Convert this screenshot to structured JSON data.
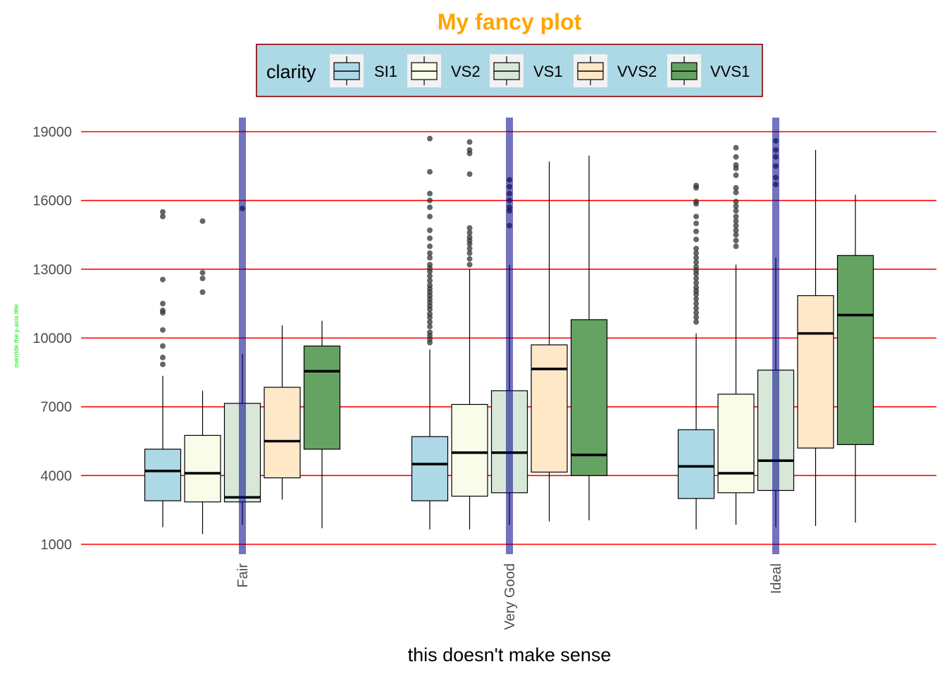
{
  "chart_data": {
    "type": "boxplot",
    "title": "My fancy plot",
    "xlabel": "this doesn't make sense",
    "ylabel": "override the y-axis title",
    "ylim": [
      600,
      19650
    ],
    "yticks": [
      1000,
      4000,
      7000,
      10000,
      13000,
      16000,
      19000
    ],
    "ytick_labels": [
      "1000",
      "4000",
      "7000",
      "10000",
      "13000",
      "16000",
      "19000"
    ],
    "grid": "horizontal major lines in red",
    "legend": {
      "title": "clarity",
      "position": "top",
      "entries": [
        "SI1",
        "VS2",
        "VS1",
        "VVS2",
        "VVS1"
      ]
    },
    "colors": {
      "title": "#FFA500",
      "ylabel": "#00EE00",
      "grid": "#FF0000",
      "vline": "#00008B",
      "legend_bg": "#ADD8E6",
      "legend_border": "#8B0000",
      "SI1": "#ADD8E6",
      "VS2": "#F8FCE8",
      "VS1": "#D8E8D8",
      "VVS2": "#FFE8C8",
      "VVS1": "#65A363"
    },
    "categories": [
      "Fair",
      "Very Good",
      "Ideal"
    ],
    "vertical_lines_at": [
      "Fair",
      "Very Good",
      "Ideal"
    ],
    "series": [
      {
        "name": "SI1",
        "boxes": [
          {
            "lower": 1750,
            "q1": 2900,
            "median": 4200,
            "q3": 5150,
            "upper": 8350,
            "outliers": [
              8850,
              9150,
              9650,
              10350,
              11100,
              11200,
              11500,
              12550,
              15300,
              15500
            ]
          },
          {
            "lower": 1650,
            "q1": 2900,
            "median": 4500,
            "q3": 5700,
            "upper": 9500,
            "outliers": [
              9800,
              9950,
              10100,
              10250,
              10500,
              10700,
              10900,
              11050,
              11250,
              11400,
              11550,
              11700,
              11850,
              12000,
              12150,
              12300,
              12500,
              12700,
              12900,
              13050,
              13200,
              13500,
              13700,
              14000,
              14350,
              14700,
              15300,
              15700,
              16000,
              16300,
              17250,
              18700
            ]
          },
          {
            "lower": 1650,
            "q1": 3000,
            "median": 4400,
            "q3": 6000,
            "upper": 10200,
            "outliers": [
              10700,
              10900,
              11100,
              11300,
              11500,
              11700,
              11900,
              12050,
              12200,
              12400,
              12600,
              12800,
              12950,
              13100,
              13300,
              13500,
              13700,
              13900,
              14300,
              14650,
              15000,
              15300,
              15850,
              15950,
              16550,
              16650
            ]
          }
        ]
      },
      {
        "name": "VS2",
        "boxes": [
          {
            "lower": 1450,
            "q1": 2850,
            "median": 4100,
            "q3": 5750,
            "upper": 7700,
            "outliers": [
              12000,
              12600,
              12850,
              15100
            ]
          },
          {
            "lower": 1650,
            "q1": 3100,
            "median": 5000,
            "q3": 7100,
            "upper": 13000,
            "outliers": [
              13200,
              13450,
              13700,
              13900,
              14100,
              14250,
              14400,
              14600,
              14800,
              17150,
              18050,
              18200,
              18550
            ]
          },
          {
            "lower": 1850,
            "q1": 3250,
            "median": 4100,
            "q3": 7550,
            "upper": 13200,
            "outliers": [
              14000,
              14250,
              14500,
              14700,
              14900,
              15100,
              15300,
              15550,
              15750,
              15950,
              16350,
              16550,
              17100,
              17400,
              17550,
              17900,
              18300
            ]
          }
        ]
      },
      {
        "name": "VS1",
        "boxes": [
          {
            "lower": 1850,
            "q1": 2850,
            "median": 3050,
            "q3": 7150,
            "upper": 9300,
            "outliers": [
              15650
            ]
          },
          {
            "lower": 1850,
            "q1": 3250,
            "median": 5000,
            "q3": 7700,
            "upper": 13200,
            "outliers": [
              14900,
              15550,
              15700,
              16000,
              16300,
              16600,
              16900
            ]
          },
          {
            "lower": 1750,
            "q1": 3350,
            "median": 4650,
            "q3": 8600,
            "upper": 13500,
            "outliers": [
              16700,
              17000,
              17500,
              17900,
              18200,
              18600
            ]
          }
        ]
      },
      {
        "name": "VVS2",
        "boxes": [
          {
            "lower": 2950,
            "q1": 3900,
            "median": 5500,
            "q3": 7850,
            "upper": 10550,
            "outliers": []
          },
          {
            "lower": 2000,
            "q1": 4150,
            "median": 8650,
            "q3": 9700,
            "upper": 17700,
            "outliers": []
          },
          {
            "lower": 1800,
            "q1": 5200,
            "median": 10200,
            "q3": 11850,
            "upper": 18200,
            "outliers": []
          }
        ]
      },
      {
        "name": "VVS1",
        "boxes": [
          {
            "lower": 1700,
            "q1": 5150,
            "median": 8550,
            "q3": 9650,
            "upper": 10750,
            "outliers": []
          },
          {
            "lower": 2050,
            "q1": 4000,
            "median": 4900,
            "q3": 10800,
            "upper": 17950,
            "outliers": []
          },
          {
            "lower": 1950,
            "q1": 5350,
            "median": 11000,
            "q3": 13600,
            "upper": 16250,
            "outliers": []
          }
        ]
      }
    ]
  }
}
